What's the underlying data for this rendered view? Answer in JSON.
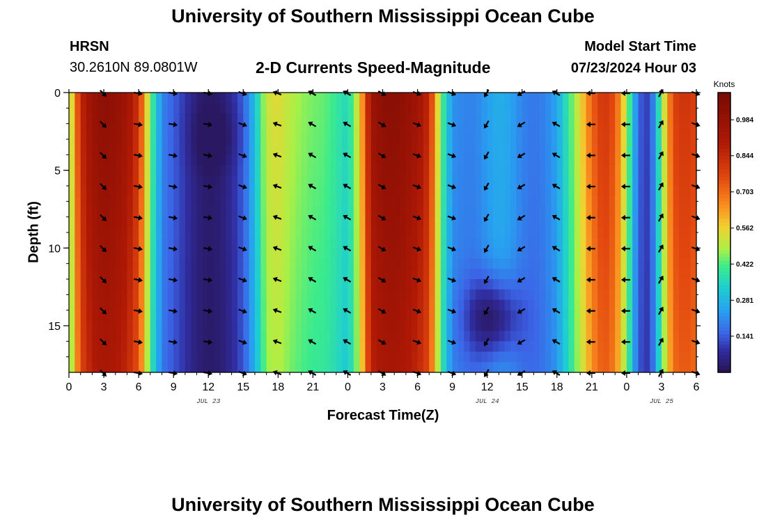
{
  "page": {
    "title": "University of Southern Mississippi Ocean Cube",
    "footer_title": "University of Southern Mississippi Ocean Cube",
    "station_name": "HRSN",
    "station_coords": "30.2610N  89.0801W",
    "plot_title": "2-D Currents Speed-Magnitude",
    "model_start_label": "Model Start Time",
    "model_start_value": "07/23/2024 Hour 03"
  },
  "chart_data": {
    "type": "heatmap",
    "title": "2-D Currents Speed-Magnitude",
    "xlabel": "Forecast Time(Z)",
    "ylabel": "Depth (ft)",
    "x_ticks": [
      "0",
      "3",
      "6",
      "9",
      "12",
      "15",
      "18",
      "21",
      "0",
      "3",
      "6",
      "9",
      "12",
      "15",
      "18",
      "21",
      "0",
      "3",
      "6"
    ],
    "x_hours_range": [
      0,
      54
    ],
    "date_labels": [
      {
        "text": "JUL 23",
        "hour": 12
      },
      {
        "text": "JUL 24",
        "hour": 36
      },
      {
        "text": "JUL 25",
        "hour": 51
      }
    ],
    "y_ticks": [
      "0",
      "5",
      "10",
      "15"
    ],
    "y_tick_values": [
      0,
      5,
      10,
      15
    ],
    "ylim": [
      0,
      18
    ],
    "colorbar": {
      "unit": "Knots",
      "ticks": [
        "0.141",
        "0.281",
        "0.422",
        "0.562",
        "0.703",
        "0.844",
        "0.984"
      ],
      "tick_values": [
        0.141,
        0.281,
        0.422,
        0.562,
        0.703,
        0.844,
        0.984
      ],
      "range": [
        0.0,
        1.09
      ]
    },
    "speed_profile": {
      "hours": [
        0,
        1,
        2,
        3,
        4,
        5,
        6,
        7,
        8,
        9,
        10,
        11,
        12,
        13,
        14,
        15,
        16,
        17,
        18,
        19,
        20,
        21,
        22,
        23,
        24,
        25,
        26,
        27,
        28,
        29,
        30,
        31,
        32,
        33,
        34,
        35,
        36,
        37,
        38,
        39,
        40,
        41,
        42,
        43,
        44,
        45,
        46,
        47,
        48,
        49,
        50,
        51,
        52,
        53,
        54
      ],
      "speed_knots": [
        0.45,
        0.85,
        0.98,
        1.02,
        1.0,
        0.95,
        0.82,
        0.45,
        0.2,
        0.15,
        0.1,
        0.05,
        0.03,
        0.04,
        0.08,
        0.15,
        0.3,
        0.52,
        0.55,
        0.5,
        0.47,
        0.45,
        0.44,
        0.4,
        0.35,
        0.55,
        0.96,
        1.02,
        1.03,
        1.0,
        0.95,
        0.85,
        0.45,
        0.22,
        0.2,
        0.2,
        0.24,
        0.27,
        0.25,
        0.2,
        0.18,
        0.2,
        0.25,
        0.4,
        0.55,
        0.72,
        0.82,
        0.75,
        0.5,
        0.15,
        0.1,
        0.45,
        0.78,
        0.82,
        0.78
      ]
    },
    "bottom_speed_offsets": [
      {
        "hour": 12.5,
        "depth_center": 2.8,
        "depth_width": 2.0,
        "delta": -0.05
      },
      {
        "hour": 36.5,
        "depth_center": 14.5,
        "depth_width": 2.6,
        "delta": -0.2
      }
    ],
    "arrow_depths": [
      0,
      2,
      4,
      6,
      8,
      10,
      12,
      14,
      16,
      18
    ],
    "arrow_hours": [
      3,
      6,
      9,
      12,
      15,
      18,
      21,
      24,
      27,
      30,
      33,
      36,
      39,
      42,
      45,
      48,
      51,
      54
    ],
    "arrow_direction_deg_by_hour": [
      45,
      10,
      10,
      10,
      20,
      200,
      210,
      210,
      30,
      20,
      20,
      120,
      150,
      210,
      180,
      180,
      300,
      20
    ]
  }
}
